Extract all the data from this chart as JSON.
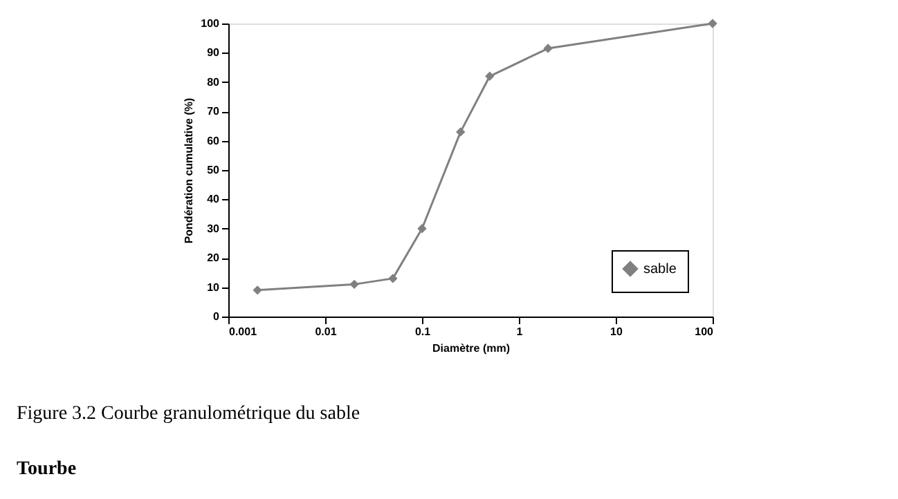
{
  "chart_data": {
    "type": "line",
    "xlabel": "Diamètre (mm)",
    "ylabel": "Pondération cumulative (%)",
    "x": [
      0.002,
      0.02,
      0.05,
      0.1,
      0.25,
      0.5,
      2,
      100
    ],
    "series": [
      {
        "name": "sable",
        "color": "#808080",
        "values": [
          9,
          11,
          13,
          30,
          63,
          82,
          91.5,
          100
        ]
      }
    ],
    "log": "x",
    "xlim": [
      0.001,
      100
    ],
    "xticks": [
      0.001,
      0.01,
      0.1,
      1,
      10,
      100
    ],
    "ylim": [
      0,
      100
    ],
    "yticks": [
      0,
      10,
      20,
      30,
      40,
      50,
      60,
      70,
      80,
      90,
      100
    ],
    "grid": false,
    "legend": "bottom right",
    "marker": "diamond",
    "line_style": "solid",
    "annotations": [
      "Figure 3.2        Courbe granulométrique du sable",
      "Tourbe"
    ]
  }
}
